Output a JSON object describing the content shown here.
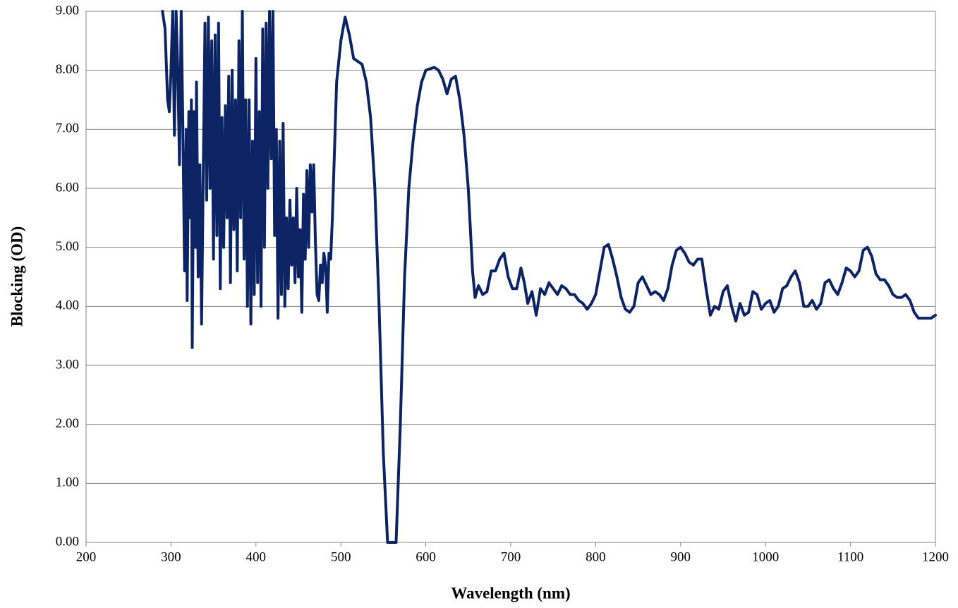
{
  "chart_data": {
    "type": "line",
    "x_label": "Wavelength (nm)",
    "y_label": "Blocking (OD)",
    "color": "#0c2463",
    "x": [
      290,
      293,
      296,
      298,
      300,
      302,
      304,
      306,
      308,
      310,
      312,
      314,
      316,
      318,
      319,
      321,
      323,
      324,
      325,
      327,
      329,
      330,
      332,
      334,
      336,
      338,
      340,
      342,
      344,
      346,
      348,
      350,
      352,
      354,
      356,
      358,
      360,
      362,
      364,
      366,
      368,
      370,
      372,
      374,
      376,
      378,
      380,
      382,
      384,
      386,
      388,
      390,
      392,
      394,
      396,
      398,
      400,
      402,
      404,
      406,
      408,
      410,
      412,
      414,
      416,
      418,
      420,
      422,
      424,
      426,
      428,
      430,
      432,
      434,
      436,
      438,
      440,
      442,
      444,
      446,
      448,
      450,
      452,
      454,
      456,
      458,
      460,
      462,
      464,
      466,
      468,
      470,
      472,
      474,
      476,
      478,
      480,
      482,
      484,
      486,
      488,
      490,
      495,
      500,
      505,
      510,
      515,
      520,
      525,
      530,
      535,
      540,
      545,
      550,
      555,
      565,
      570,
      575,
      580,
      585,
      590,
      595,
      600,
      610,
      615,
      620,
      625,
      630,
      635,
      640,
      645,
      650,
      655,
      658,
      662,
      667,
      672,
      677,
      682,
      687,
      692,
      697,
      702,
      707,
      712,
      716,
      720,
      725,
      730,
      735,
      740,
      745,
      750,
      755,
      760,
      765,
      770,
      775,
      780,
      785,
      790,
      795,
      800,
      805,
      810,
      815,
      820,
      825,
      830,
      835,
      840,
      845,
      850,
      855,
      860,
      865,
      870,
      875,
      880,
      885,
      890,
      895,
      900,
      905,
      910,
      915,
      920,
      925,
      930,
      935,
      940,
      945,
      950,
      955,
      960,
      965,
      970,
      975,
      980,
      985,
      990,
      995,
      1000,
      1005,
      1010,
      1015,
      1020,
      1025,
      1030,
      1035,
      1040,
      1045,
      1050,
      1055,
      1060,
      1065,
      1070,
      1075,
      1080,
      1085,
      1090,
      1095,
      1100,
      1105,
      1110,
      1115,
      1120,
      1125,
      1130,
      1135,
      1140,
      1145,
      1150,
      1155,
      1160,
      1165,
      1170,
      1175,
      1180,
      1185,
      1190,
      1195,
      1200
    ],
    "values": [
      9.0,
      8.7,
      7.5,
      7.3,
      8.0,
      9.0,
      6.9,
      9.0,
      8.0,
      6.4,
      9.0,
      7.0,
      4.6,
      7.0,
      4.1,
      7.3,
      5.5,
      7.5,
      3.3,
      7.3,
      5.0,
      7.8,
      4.5,
      6.4,
      3.7,
      6.3,
      8.8,
      5.8,
      8.9,
      6.0,
      8.5,
      4.8,
      8.6,
      5.2,
      8.8,
      4.3,
      7.2,
      5.0,
      7.4,
      5.5,
      7.9,
      4.4,
      8.0,
      5.3,
      7.5,
      4.6,
      8.5,
      5.5,
      9.0,
      4.8,
      7.5,
      4.0,
      7.5,
      3.7,
      6.8,
      4.2,
      8.2,
      4.4,
      7.3,
      4.0,
      8.7,
      5.0,
      8.8,
      6.0,
      9.0,
      6.5,
      9.0,
      5.2,
      7.0,
      3.8,
      6.8,
      4.2,
      7.1,
      4.0,
      5.5,
      4.3,
      5.8,
      4.7,
      5.5,
      4.4,
      6.0,
      4.5,
      5.3,
      3.9,
      5.9,
      4.8,
      6.3,
      5.0,
      6.4,
      5.6,
      6.4,
      5.1,
      4.2,
      4.1,
      4.7,
      4.4,
      4.9,
      4.7,
      3.9,
      4.9,
      4.8,
      5.5,
      7.8,
      8.5,
      8.9,
      8.6,
      8.2,
      8.15,
      8.1,
      7.8,
      7.2,
      6.0,
      4.0,
      1.5,
      0.0,
      0.0,
      2.0,
      4.5,
      6.0,
      6.8,
      7.4,
      7.8,
      8.0,
      8.05,
      8.0,
      7.85,
      7.6,
      7.85,
      7.9,
      7.5,
      6.9,
      6.0,
      4.6,
      4.15,
      4.35,
      4.2,
      4.25,
      4.6,
      4.6,
      4.8,
      4.9,
      4.5,
      4.3,
      4.3,
      4.65,
      4.4,
      4.05,
      4.25,
      3.85,
      4.3,
      4.2,
      4.4,
      4.3,
      4.2,
      4.35,
      4.3,
      4.2,
      4.2,
      4.1,
      4.05,
      3.95,
      4.05,
      4.2,
      4.6,
      5.0,
      5.05,
      4.8,
      4.5,
      4.15,
      3.95,
      3.9,
      4.0,
      4.4,
      4.5,
      4.35,
      4.2,
      4.25,
      4.2,
      4.1,
      4.3,
      4.7,
      4.95,
      5.0,
      4.9,
      4.75,
      4.7,
      4.8,
      4.8,
      4.3,
      3.85,
      4.0,
      3.95,
      4.25,
      4.35,
      4.0,
      3.75,
      4.05,
      3.85,
      3.9,
      4.25,
      4.2,
      3.95,
      4.05,
      4.1,
      3.9,
      4.0,
      4.3,
      4.35,
      4.5,
      4.6,
      4.4,
      4.0,
      4.0,
      4.1,
      3.95,
      4.05,
      4.4,
      4.45,
      4.3,
      4.2,
      4.4,
      4.65,
      4.6,
      4.5,
      4.6,
      4.95,
      5.0,
      4.85,
      4.55,
      4.45,
      4.45,
      4.35,
      4.2,
      4.15,
      4.15,
      4.2,
      4.1,
      3.9,
      3.8,
      3.8,
      3.8,
      3.8,
      3.85
    ],
    "xlim": [
      200,
      1200
    ],
    "xticks": [
      200,
      300,
      400,
      500,
      600,
      700,
      800,
      900,
      1000,
      1100,
      1200
    ],
    "ylim": [
      0,
      9
    ],
    "yticks": [
      {
        "value": 0,
        "label": "0.00"
      },
      {
        "value": 1,
        "label": "1.00"
      },
      {
        "value": 2,
        "label": "2.00"
      },
      {
        "value": 3,
        "label": "3.00"
      },
      {
        "value": 4,
        "label": "4.00"
      },
      {
        "value": 5,
        "label": "5.00"
      },
      {
        "value": 6,
        "label": "6.00"
      },
      {
        "value": 7,
        "label": "7.00"
      },
      {
        "value": 8,
        "label": "8.00"
      },
      {
        "value": 9,
        "label": "9.00"
      }
    ],
    "grid": true
  }
}
